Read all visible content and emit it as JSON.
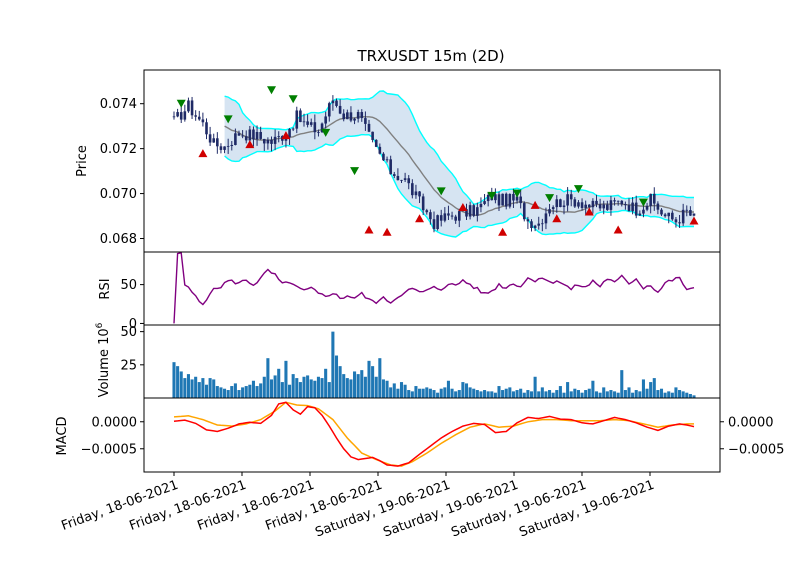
{
  "chart_data": {
    "type": "candlestick",
    "title": "TRXUSDT 15m (2D)",
    "x_date_labels": [
      "Friday, 18-06-2021",
      "Friday, 18-06-2021",
      "Friday, 18-06-2021",
      "Friday, 18-06-2021",
      "Saturday, 19-06-2021",
      "Saturday, 19-06-2021",
      "Saturday, 19-06-2021",
      "Saturday, 19-06-2021"
    ],
    "price": {
      "ylabel": "Price",
      "ylim": [
        0.0674,
        0.0755
      ],
      "yticks": [
        0.068,
        0.07,
        0.072,
        0.074
      ],
      "ytick_labels": [
        "0.068",
        "0.070",
        "0.072",
        "0.074"
      ],
      "bars": 145,
      "close_anchors": [
        [
          0,
          0.0732
        ],
        [
          4,
          0.0739
        ],
        [
          8,
          0.0731
        ],
        [
          11,
          0.0722
        ],
        [
          14,
          0.0721
        ],
        [
          18,
          0.0727
        ],
        [
          22,
          0.0726
        ],
        [
          27,
          0.0723
        ],
        [
          31,
          0.0727
        ],
        [
          34,
          0.0734
        ],
        [
          37,
          0.073
        ],
        [
          40,
          0.0728
        ],
        [
          44,
          0.0742
        ],
        [
          47,
          0.0735
        ],
        [
          51,
          0.0735
        ],
        [
          55,
          0.0722
        ],
        [
          60,
          0.071
        ],
        [
          64,
          0.0706
        ],
        [
          68,
          0.0696
        ],
        [
          72,
          0.0687
        ],
        [
          76,
          0.069
        ],
        [
          80,
          0.0691
        ],
        [
          84,
          0.0693
        ],
        [
          88,
          0.0699
        ],
        [
          90,
          0.0697
        ],
        [
          95,
          0.0697
        ],
        [
          98,
          0.0688
        ],
        [
          101,
          0.0687
        ],
        [
          104,
          0.0695
        ],
        [
          108,
          0.0697
        ],
        [
          112,
          0.0697
        ],
        [
          116,
          0.0694
        ],
        [
          120,
          0.0694
        ],
        [
          124,
          0.0697
        ],
        [
          128,
          0.0693
        ],
        [
          132,
          0.0697
        ],
        [
          136,
          0.069
        ],
        [
          139,
          0.0688
        ],
        [
          142,
          0.0692
        ],
        [
          144,
          0.0689
        ]
      ],
      "bollinger_color": "#00ffff",
      "bollinger_fill": "#d6e4f2",
      "sma_color": "#808080",
      "candle_color": "#1f2a66",
      "buy_marker_color": "#007f00",
      "sell_marker_color": "#d00000",
      "buy_markers": [
        [
          2,
          0.074
        ],
        [
          15,
          0.0733
        ],
        [
          27,
          0.0746
        ],
        [
          33,
          0.0742
        ],
        [
          42,
          0.0727
        ],
        [
          50,
          0.071
        ],
        [
          74,
          0.0701
        ],
        [
          88,
          0.0699
        ],
        [
          95,
          0.07
        ],
        [
          104,
          0.0698
        ],
        [
          112,
          0.0702
        ],
        [
          130,
          0.0696
        ]
      ],
      "sell_markers": [
        [
          8,
          0.0718
        ],
        [
          21,
          0.0722
        ],
        [
          31,
          0.0726
        ],
        [
          54,
          0.0684
        ],
        [
          59,
          0.0683
        ],
        [
          68,
          0.0689
        ],
        [
          80,
          0.0694
        ],
        [
          91,
          0.0683
        ],
        [
          100,
          0.0695
        ],
        [
          106,
          0.0689
        ],
        [
          115,
          0.0692
        ],
        [
          123,
          0.0684
        ],
        [
          144,
          0.0688
        ]
      ]
    },
    "rsi": {
      "ylabel": "RSI",
      "ylim": [
        -2,
        92
      ],
      "yticks": [
        0,
        50
      ],
      "ytick_labels": [
        "0",
        "50"
      ],
      "color": "#800080",
      "anchors": [
        [
          0,
          0
        ],
        [
          1,
          90
        ],
        [
          2,
          91
        ],
        [
          3,
          50
        ],
        [
          5,
          40
        ],
        [
          7,
          28
        ],
        [
          8,
          25
        ],
        [
          10,
          40
        ],
        [
          13,
          48
        ],
        [
          15,
          55
        ],
        [
          18,
          52
        ],
        [
          20,
          56
        ],
        [
          22,
          50
        ],
        [
          24,
          58
        ],
        [
          26,
          68
        ],
        [
          28,
          62
        ],
        [
          30,
          50
        ],
        [
          32,
          54
        ],
        [
          34,
          46
        ],
        [
          36,
          42
        ],
        [
          38,
          45
        ],
        [
          40,
          38
        ],
        [
          42,
          35
        ],
        [
          44,
          40
        ],
        [
          46,
          32
        ],
        [
          48,
          36
        ],
        [
          50,
          33
        ],
        [
          52,
          38
        ],
        [
          54,
          30
        ],
        [
          56,
          28
        ],
        [
          58,
          32
        ],
        [
          60,
          28
        ],
        [
          62,
          34
        ],
        [
          64,
          42
        ],
        [
          66,
          44
        ],
        [
          68,
          40
        ],
        [
          70,
          42
        ],
        [
          72,
          46
        ],
        [
          74,
          44
        ],
        [
          76,
          52
        ],
        [
          78,
          48
        ],
        [
          80,
          56
        ],
        [
          82,
          50
        ],
        [
          84,
          44
        ],
        [
          86,
          38
        ],
        [
          88,
          42
        ],
        [
          90,
          50
        ],
        [
          92,
          46
        ],
        [
          94,
          52
        ],
        [
          96,
          48
        ],
        [
          98,
          58
        ],
        [
          100,
          56
        ],
        [
          102,
          60
        ],
        [
          104,
          52
        ],
        [
          106,
          56
        ],
        [
          108,
          50
        ],
        [
          110,
          44
        ],
        [
          112,
          50
        ],
        [
          114,
          46
        ],
        [
          116,
          55
        ],
        [
          118,
          48
        ],
        [
          120,
          58
        ],
        [
          122,
          52
        ],
        [
          124,
          60
        ],
        [
          126,
          52
        ],
        [
          128,
          58
        ],
        [
          130,
          46
        ],
        [
          132,
          50
        ],
        [
          134,
          40
        ],
        [
          136,
          52
        ],
        [
          138,
          56
        ],
        [
          140,
          58
        ],
        [
          142,
          44
        ],
        [
          144,
          44
        ]
      ]
    },
    "volume": {
      "ylabel": "Volume",
      "scale_label": "10^6",
      "ylim": [
        0,
        55
      ],
      "yticks": [
        25,
        50
      ],
      "ytick_labels": [
        "25",
        "50"
      ],
      "color": "#1f77b4",
      "values": [
        27,
        24,
        20,
        15,
        18,
        14,
        16,
        12,
        15,
        10,
        15,
        14,
        9,
        8,
        7,
        6,
        9,
        11,
        6,
        8,
        9,
        10,
        13,
        9,
        11,
        16,
        30,
        14,
        17,
        22,
        12,
        28,
        10,
        18,
        15,
        12,
        16,
        17,
        14,
        13,
        16,
        15,
        22,
        12,
        50,
        32,
        24,
        18,
        15,
        14,
        20,
        18,
        21,
        16,
        28,
        24,
        16,
        30,
        14,
        13,
        8,
        11,
        7,
        12,
        10,
        6,
        5,
        9,
        7,
        7,
        8,
        7,
        6,
        4,
        7,
        8,
        13,
        7,
        5,
        6,
        12,
        11,
        8,
        7,
        6,
        5,
        6,
        5,
        5,
        4,
        9,
        6,
        7,
        8,
        5,
        6,
        7,
        4,
        6,
        5,
        16,
        5,
        8,
        5,
        6,
        4,
        6,
        9,
        4,
        12,
        5,
        7,
        6,
        4,
        6,
        7,
        13,
        5,
        4,
        8,
        5,
        6,
        5,
        4,
        21,
        6,
        8,
        4,
        6,
        5,
        14,
        7,
        12,
        15,
        6,
        7,
        4,
        5,
        4,
        8,
        6,
        5,
        4,
        3,
        2
      ]
    },
    "macd": {
      "ylabel": "MACD",
      "ylim_left": [
        -0.00093,
        0.00044
      ],
      "ylim_right": [
        -0.00093,
        0.00044
      ],
      "left_ticks": [
        0,
        -0.0005
      ],
      "left_tick_labels": [
        "0.0000",
        "−0.0005"
      ],
      "right_ticks": [
        0.0,
        -0.0005
      ],
      "right_tick_labels": [
        "0.0000",
        "−0.0005"
      ],
      "macd_color": "#ff0000",
      "signal_color": "#ffa500",
      "macd_anchors": [
        [
          0,
          1e-05
        ],
        [
          3,
          3e-05
        ],
        [
          6,
          -3e-05
        ],
        [
          9,
          -0.00015
        ],
        [
          12,
          -0.00018
        ],
        [
          15,
          -0.00012
        ],
        [
          18,
          -4e-05
        ],
        [
          21,
          -1e-05
        ],
        [
          24,
          -3e-05
        ],
        [
          27,
          0.00012
        ],
        [
          29,
          0.00033
        ],
        [
          31,
          0.00036
        ],
        [
          33,
          0.00022
        ],
        [
          35,
          0.00014
        ],
        [
          37,
          0.00028
        ],
        [
          39,
          0.00026
        ],
        [
          41,
          0.00012
        ],
        [
          43,
          -8e-05
        ],
        [
          45,
          -0.0003
        ],
        [
          47,
          -0.0005
        ],
        [
          49,
          -0.00065
        ],
        [
          51,
          -0.0007
        ],
        [
          53,
          -0.00068
        ],
        [
          55,
          -0.00066
        ],
        [
          57,
          -0.00072
        ],
        [
          59,
          -0.0008
        ],
        [
          62,
          -0.00082
        ],
        [
          65,
          -0.00076
        ],
        [
          68,
          -0.0006
        ],
        [
          71,
          -0.00045
        ],
        [
          74,
          -0.0003
        ],
        [
          77,
          -0.00018
        ],
        [
          80,
          -8e-05
        ],
        [
          83,
          -3e-05
        ],
        [
          86,
          -5e-05
        ],
        [
          89,
          -0.0002
        ],
        [
          92,
          -0.00018
        ],
        [
          95,
          -2e-05
        ],
        [
          98,
          8e-05
        ],
        [
          101,
          6e-05
        ],
        [
          104,
          0.0001
        ],
        [
          107,
          5e-05
        ],
        [
          110,
          4e-05
        ],
        [
          113,
          -2e-05
        ],
        [
          116,
          -4e-05
        ],
        [
          119,
          2e-05
        ],
        [
          122,
          8e-05
        ],
        [
          125,
          4e-05
        ],
        [
          128,
          -2e-05
        ],
        [
          131,
          -0.0001
        ],
        [
          134,
          -0.00016
        ],
        [
          137,
          -8e-05
        ],
        [
          140,
          -4e-05
        ],
        [
          142,
          -6e-05
        ],
        [
          144,
          -9e-05
        ]
      ],
      "signal_anchors": [
        [
          0,
          9e-05
        ],
        [
          4,
          0.00011
        ],
        [
          8,
          4e-05
        ],
        [
          12,
          -6e-05
        ],
        [
          16,
          -8e-05
        ],
        [
          20,
          -4e-05
        ],
        [
          24,
          4e-05
        ],
        [
          28,
          0.0002
        ],
        [
          31,
          0.00036
        ],
        [
          34,
          0.00031
        ],
        [
          37,
          0.0003
        ],
        [
          40,
          0.00024
        ],
        [
          44,
          4e-05
        ],
        [
          48,
          -0.0003
        ],
        [
          52,
          -0.00058
        ],
        [
          56,
          -0.0007
        ],
        [
          60,
          -0.0008
        ],
        [
          63,
          -0.00082
        ],
        [
          66,
          -0.00074
        ],
        [
          70,
          -0.00058
        ],
        [
          74,
          -0.0004
        ],
        [
          78,
          -0.00024
        ],
        [
          82,
          -0.0001
        ],
        [
          86,
          -4e-05
        ],
        [
          90,
          -0.0001
        ],
        [
          94,
          -8e-05
        ],
        [
          98,
          0.0
        ],
        [
          102,
          4e-05
        ],
        [
          106,
          4e-05
        ],
        [
          110,
          2e-05
        ],
        [
          114,
          2e-05
        ],
        [
          118,
          2e-05
        ],
        [
          122,
          4e-05
        ],
        [
          126,
          2e-05
        ],
        [
          130,
          -4e-05
        ],
        [
          134,
          -0.0001
        ],
        [
          138,
          -6e-05
        ],
        [
          142,
          -4e-05
        ],
        [
          144,
          -4e-05
        ]
      ]
    }
  }
}
